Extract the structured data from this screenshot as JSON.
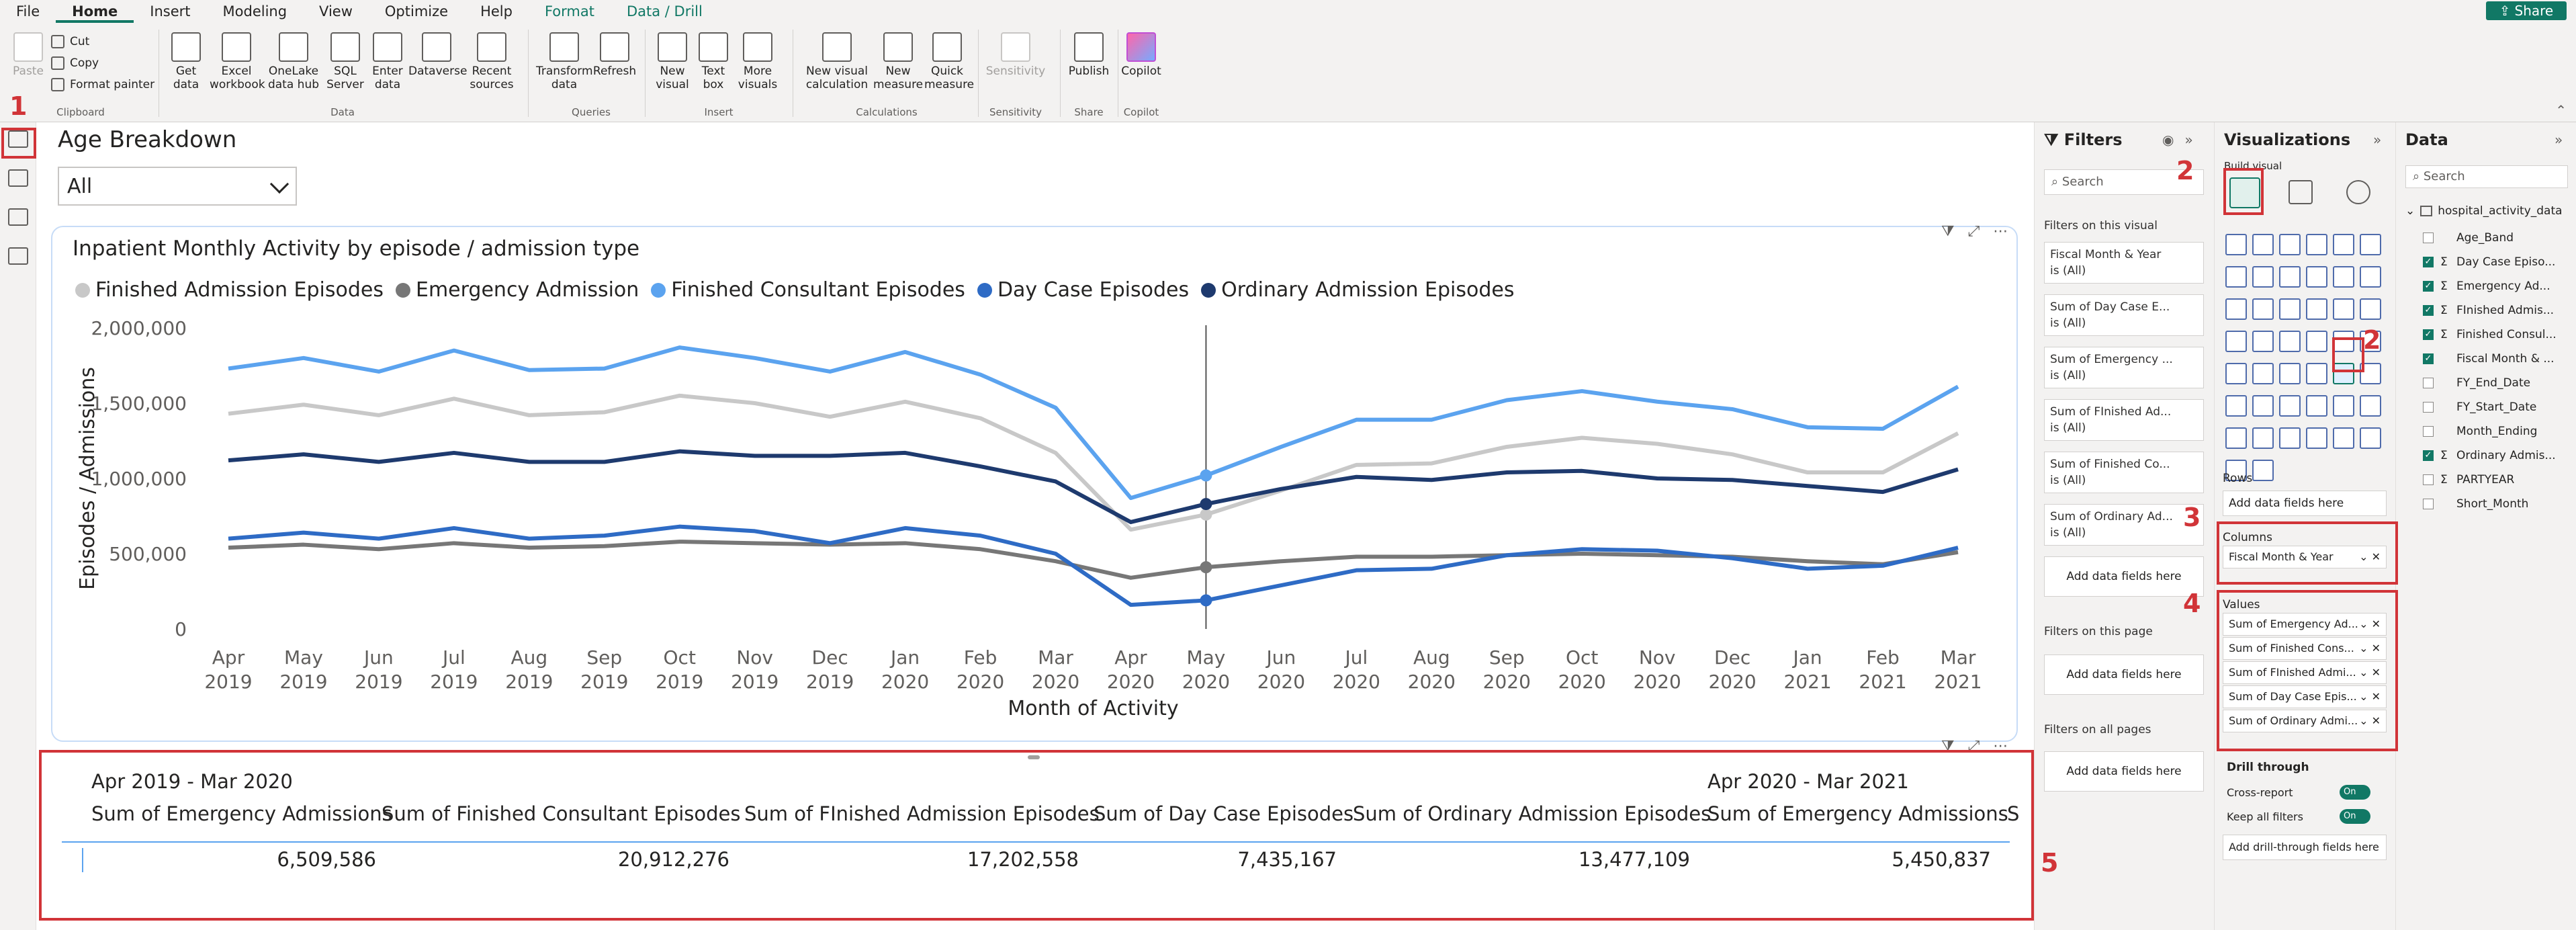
{
  "menu": {
    "items": [
      "File",
      "Home",
      "Insert",
      "Modeling",
      "View",
      "Optimize",
      "Help",
      "Format",
      "Data / Drill"
    ],
    "share_label": "Share"
  },
  "ribbon": {
    "clipboard": {
      "paste": "Paste",
      "cut": "Cut",
      "copy": "Copy",
      "format_painter": "Format painter",
      "group": "Clipboard"
    },
    "data": {
      "get_data": "Get data",
      "excel": "Excel workbook",
      "onelake": "OneLake data hub",
      "sql": "SQL Server",
      "enter": "Enter data",
      "dataverse": "Dataverse",
      "recent": "Recent sources",
      "group": "Data"
    },
    "queries": {
      "transform": "Transform data",
      "refresh": "Refresh",
      "group": "Queries"
    },
    "insert": {
      "new_visual": "New visual",
      "text_box": "Text box",
      "more_visuals": "More visuals",
      "group": "Insert"
    },
    "calculations": {
      "new_visual_calc": "New visual calculation",
      "new_measure": "New measure",
      "quick_measure": "Quick measure",
      "group": "Calculations"
    },
    "sensitivity": {
      "label": "Sensitivity",
      "group": "Sensitivity"
    },
    "share": {
      "publish": "Publish",
      "group": "Share"
    },
    "copilot": {
      "label": "Copilot",
      "group": "Copilot"
    }
  },
  "annotations": [
    "1",
    "2",
    "3",
    "4",
    "5",
    "2"
  ],
  "slicer": {
    "title": "Age Breakdown",
    "selected": "All"
  },
  "chart_data": {
    "type": "line",
    "title": "Inpatient Monthly Activity by episode / admission type",
    "xlabel": "Month of Activity",
    "ylabel": "Episodes / Admissions",
    "ylim": [
      0,
      2000000
    ],
    "yticks": [
      "0",
      "500,000",
      "1,000,000",
      "1,500,000",
      "2,000,000"
    ],
    "grid": false,
    "legend_position": "top",
    "categories": [
      [
        "Apr",
        "2019"
      ],
      [
        "May",
        "2019"
      ],
      [
        "Jun",
        "2019"
      ],
      [
        "Jul",
        "2019"
      ],
      [
        "Aug",
        "2019"
      ],
      [
        "Sep",
        "2019"
      ],
      [
        "Oct",
        "2019"
      ],
      [
        "Nov",
        "2019"
      ],
      [
        "Dec",
        "2019"
      ],
      [
        "Jan",
        "2020"
      ],
      [
        "Feb",
        "2020"
      ],
      [
        "Mar",
        "2020"
      ],
      [
        "Apr",
        "2020"
      ],
      [
        "May",
        "2020"
      ],
      [
        "Jun",
        "2020"
      ],
      [
        "Jul",
        "2020"
      ],
      [
        "Aug",
        "2020"
      ],
      [
        "Sep",
        "2020"
      ],
      [
        "Oct",
        "2020"
      ],
      [
        "Nov",
        "2020"
      ],
      [
        "Dec",
        "2020"
      ],
      [
        "Jan",
        "2021"
      ],
      [
        "Feb",
        "2021"
      ],
      [
        "Mar",
        "2021"
      ]
    ],
    "series": [
      {
        "name": "Finished Admission Episodes",
        "color": "#c8c8c8",
        "values": [
          1430000,
          1490000,
          1420000,
          1530000,
          1420000,
          1440000,
          1550000,
          1500000,
          1410000,
          1510000,
          1400000,
          1170000,
          660000,
          760000,
          920000,
          1090000,
          1100000,
          1210000,
          1270000,
          1230000,
          1160000,
          1040000,
          1040000,
          1300000
        ]
      },
      {
        "name": "Emergency Admission",
        "color": "#777777",
        "values": [
          540000,
          560000,
          530000,
          570000,
          540000,
          550000,
          580000,
          570000,
          560000,
          570000,
          530000,
          450000,
          340000,
          410000,
          450000,
          480000,
          480000,
          490000,
          500000,
          490000,
          480000,
          450000,
          430000,
          510000
        ]
      },
      {
        "name": "Finished Consultant Episodes",
        "color": "#5ba3ef",
        "values": [
          1730000,
          1800000,
          1710000,
          1850000,
          1720000,
          1730000,
          1870000,
          1800000,
          1710000,
          1840000,
          1690000,
          1470000,
          870000,
          1020000,
          1210000,
          1390000,
          1390000,
          1520000,
          1580000,
          1510000,
          1460000,
          1340000,
          1330000,
          1610000
        ]
      },
      {
        "name": "Day Case Episodes",
        "color": "#2e6bc5",
        "values": [
          600000,
          640000,
          600000,
          670000,
          600000,
          620000,
          680000,
          650000,
          570000,
          670000,
          620000,
          500000,
          160000,
          190000,
          290000,
          390000,
          400000,
          490000,
          530000,
          520000,
          470000,
          400000,
          420000,
          540000
        ]
      },
      {
        "name": "Ordinary Admission Episodes",
        "color": "#1e3a6e",
        "values": [
          1120000,
          1160000,
          1110000,
          1170000,
          1110000,
          1110000,
          1180000,
          1150000,
          1150000,
          1170000,
          1080000,
          980000,
          710000,
          830000,
          930000,
          1010000,
          990000,
          1040000,
          1050000,
          1000000,
          990000,
          950000,
          910000,
          1060000
        ]
      }
    ],
    "tooltip_month": "May 2020"
  },
  "matrix": {
    "periods": [
      "Apr 2019 - Mar 2020",
      "Apr 2020 - Mar 2021"
    ],
    "headers": [
      "Sum of Emergency Admissions",
      "Sum of Finished Consultant Episodes",
      "Sum of FInished Admission Episodes",
      "Sum of Day Case Episodes",
      "Sum of Ordinary Admission Episodes",
      "Sum of Emergency Admissions",
      "S"
    ],
    "values": [
      "6,509,586",
      "20,912,276",
      "17,202,558",
      "7,435,167",
      "13,477,109",
      "5,450,837"
    ]
  },
  "filters": {
    "title": "Filters",
    "search": "Search",
    "on_visual": "Filters on this visual",
    "cards": [
      {
        "name": "Fiscal Month & Year",
        "state": "is (All)"
      },
      {
        "name": "Sum of Day Case E...",
        "state": "is (All)"
      },
      {
        "name": "Sum of Emergency ...",
        "state": "is (All)"
      },
      {
        "name": "Sum of FInished Ad...",
        "state": "is (All)"
      },
      {
        "name": "Sum of Finished Co...",
        "state": "is (All)"
      },
      {
        "name": "Sum of Ordinary Ad...",
        "state": "is (All)"
      }
    ],
    "add": "Add data fields here",
    "on_page": "Filters on this page",
    "on_all": "Filters on all pages"
  },
  "visualizations": {
    "title": "Visualizations",
    "build_visual": "Build visual",
    "rows_label": "Rows",
    "rows_add": "Add data fields here",
    "columns_label": "Columns",
    "columns_item": "Fiscal Month & Year",
    "values_label": "Values",
    "values_items": [
      "Sum of Emergency Ad...",
      "Sum of Finished Cons...",
      "Sum of FInished Admi...",
      "Sum of Day Case Epis...",
      "Sum of Ordinary Admi..."
    ],
    "drill_through": "Drill through",
    "cross_report": "Cross-report",
    "keep_filters": "Keep all filters",
    "toggle_on": "On",
    "drill_add": "Add drill-through fields here"
  },
  "data_pane": {
    "title": "Data",
    "search": "Search",
    "table": "hospital_activity_data",
    "fields": [
      {
        "name": "Age_Band",
        "checked": false,
        "sigma": false
      },
      {
        "name": "Day Case Episo...",
        "checked": true,
        "sigma": true
      },
      {
        "name": "Emergency Ad...",
        "checked": true,
        "sigma": true
      },
      {
        "name": "FInished Admis...",
        "checked": true,
        "sigma": true
      },
      {
        "name": "Finished Consul...",
        "checked": true,
        "sigma": true
      },
      {
        "name": "Fiscal Month & ...",
        "checked": true,
        "sigma": false
      },
      {
        "name": "FY_End_Date",
        "checked": false,
        "sigma": false
      },
      {
        "name": "FY_Start_Date",
        "checked": false,
        "sigma": false
      },
      {
        "name": "Month_Ending",
        "checked": false,
        "sigma": false
      },
      {
        "name": "Ordinary Admis...",
        "checked": true,
        "sigma": true
      },
      {
        "name": "PARTYEAR",
        "checked": false,
        "sigma": true
      },
      {
        "name": "Short_Month",
        "checked": false,
        "sigma": false
      }
    ]
  }
}
